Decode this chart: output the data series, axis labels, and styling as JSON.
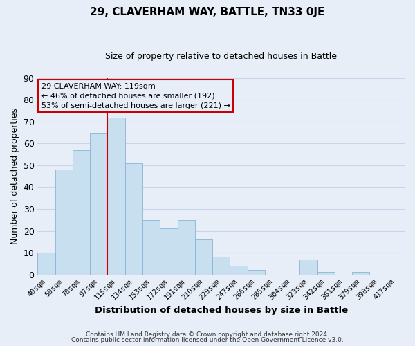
{
  "title": "29, CLAVERHAM WAY, BATTLE, TN33 0JE",
  "subtitle": "Size of property relative to detached houses in Battle",
  "xlabel": "Distribution of detached houses by size in Battle",
  "ylabel": "Number of detached properties",
  "bar_labels": [
    "40sqm",
    "59sqm",
    "78sqm",
    "97sqm",
    "115sqm",
    "134sqm",
    "153sqm",
    "172sqm",
    "191sqm",
    "210sqm",
    "229sqm",
    "247sqm",
    "266sqm",
    "285sqm",
    "304sqm",
    "323sqm",
    "342sqm",
    "361sqm",
    "379sqm",
    "398sqm",
    "417sqm"
  ],
  "bar_heights": [
    10,
    48,
    57,
    65,
    72,
    51,
    25,
    21,
    25,
    16,
    8,
    4,
    2,
    0,
    0,
    7,
    1,
    0,
    1,
    0,
    0
  ],
  "highlight_bar_index": 4,
  "bar_color": "#c8dff0",
  "bar_edge_color": "#8ab4d4",
  "highlight_line_color": "#cc0000",
  "annotation_box_text": "29 CLAVERHAM WAY: 119sqm\n← 46% of detached houses are smaller (192)\n53% of semi-detached houses are larger (221) →",
  "box_edge_color": "#cc0000",
  "footer_line1": "Contains HM Land Registry data © Crown copyright and database right 2024.",
  "footer_line2": "Contains public sector information licensed under the Open Government Licence v3.0.",
  "ylim": [
    0,
    90
  ],
  "yticks": [
    0,
    10,
    20,
    30,
    40,
    50,
    60,
    70,
    80,
    90
  ],
  "background_color": "#e8eef8",
  "grid_color": "#c8d4e8",
  "plot_bg_color": "#e8eef8"
}
